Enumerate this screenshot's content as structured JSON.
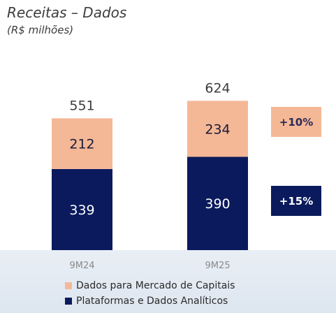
{
  "title": "Receitas – Dados",
  "subtitle": "(R$ milhões)",
  "chart_data": {
    "type": "bar",
    "stacked": true,
    "categories": [
      "9M24",
      "9M25"
    ],
    "series": [
      {
        "name": "Plataformas e Dados Analíticos",
        "values": [
          339,
          390
        ],
        "color": "#0a1a5c"
      },
      {
        "name": "Dados para Mercado de Capitais",
        "values": [
          212,
          234
        ],
        "color": "#f4b896"
      }
    ],
    "totals": [
      551,
      624
    ],
    "growth_badges": [
      {
        "series": "Dados para Mercado de Capitais",
        "label": "+10%"
      },
      {
        "series": "Plataformas e Dados Analíticos",
        "label": "+15%"
      }
    ],
    "ylim": [
      0,
      700
    ],
    "grid": false,
    "legend_position": "bottom"
  },
  "colors": {
    "navy": "#0a1a5c",
    "peach": "#f4b896",
    "footer": "#e3eaf3"
  }
}
